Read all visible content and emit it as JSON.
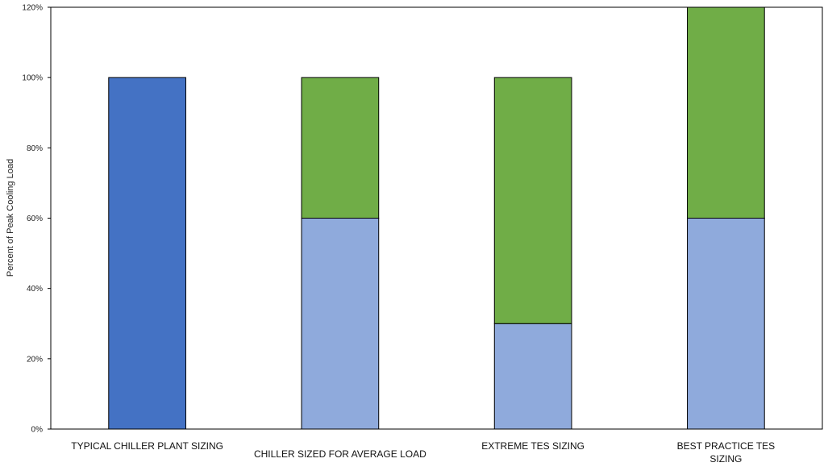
{
  "chart_data": {
    "type": "bar",
    "stacked": true,
    "title": "",
    "xlabel": "",
    "ylabel": "Percent of Peak Cooling Load",
    "ylim": [
      0,
      120
    ],
    "yticks": [
      0,
      20,
      40,
      60,
      80,
      100,
      120
    ],
    "ytick_labels": [
      "0%",
      "20%",
      "40%",
      "60%",
      "80%",
      "100%",
      "120%"
    ],
    "grid": false,
    "legend": "none",
    "categories": [
      [
        "TYPICAL CHILLER PLANT SIZING"
      ],
      [
        "CHILLER SIZED FOR AVERAGE LOAD"
      ],
      [
        "EXTREME TES SIZING"
      ],
      [
        "BEST PRACTICE TES",
        "SIZING"
      ]
    ],
    "category_label_offsets": [
      0,
      1,
      0,
      0
    ],
    "series": [
      {
        "values": [
          0,
          60,
          30,
          60
        ],
        "color": "#8faadc"
      },
      {
        "values": [
          0,
          40,
          70,
          60
        ],
        "color": "#70ad47"
      },
      {
        "values": [
          100,
          0,
          0,
          0
        ],
        "color": "#4472c4"
      }
    ]
  }
}
